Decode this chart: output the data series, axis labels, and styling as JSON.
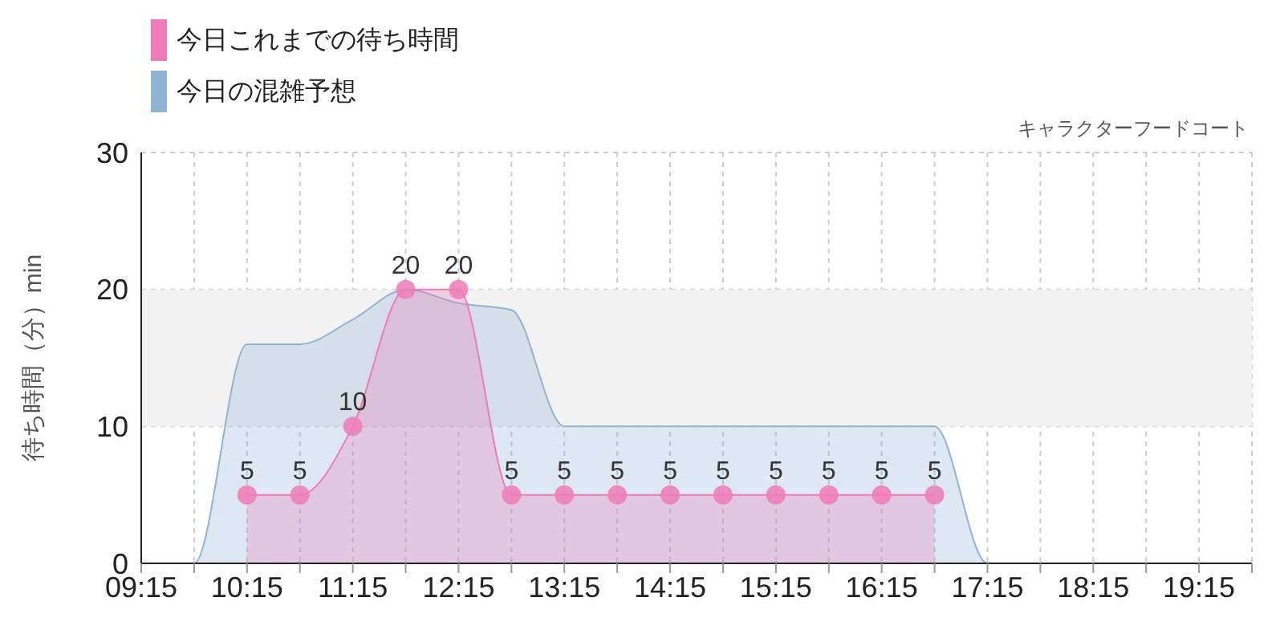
{
  "chart_data": {
    "type": "area",
    "subtitle": "キャラクターフードコート",
    "ylabel": "待ち時間（分）min",
    "xlim": [
      9.25,
      19.75
    ],
    "xticks": [
      {
        "value": 9.25,
        "label": "09:15"
      },
      {
        "value": 9.75,
        "label": null
      },
      {
        "value": 10.25,
        "label": "10:15"
      },
      {
        "value": 10.75,
        "label": null
      },
      {
        "value": 11.25,
        "label": "11:15"
      },
      {
        "value": 11.75,
        "label": null
      },
      {
        "value": 12.25,
        "label": "12:15"
      },
      {
        "value": 12.75,
        "label": null
      },
      {
        "value": 13.25,
        "label": "13:15"
      },
      {
        "value": 13.75,
        "label": null
      },
      {
        "value": 14.25,
        "label": "14:15"
      },
      {
        "value": 14.75,
        "label": null
      },
      {
        "value": 15.25,
        "label": "15:15"
      },
      {
        "value": 15.75,
        "label": null
      },
      {
        "value": 16.25,
        "label": "16:15"
      },
      {
        "value": 16.75,
        "label": null
      },
      {
        "value": 17.25,
        "label": "17:15"
      },
      {
        "value": 17.75,
        "label": null
      },
      {
        "value": 18.25,
        "label": "18:15"
      },
      {
        "value": 18.75,
        "label": null
      },
      {
        "value": 19.25,
        "label": "19:15"
      },
      {
        "value": 19.75,
        "label": null
      }
    ],
    "ylim": [
      0,
      30
    ],
    "yticks": [
      0,
      10,
      20,
      30
    ],
    "grid": true,
    "legend": "top left",
    "bands": [
      {
        "axis": "y",
        "from": 10,
        "to": 20,
        "color": "#f2f2f2"
      }
    ],
    "series": [
      {
        "name": "今日の混雑予想",
        "color": "#8fb3d3",
        "marker": "none",
        "x": [
          9.25,
          9.75,
          10.25,
          10.75,
          11.25,
          11.75,
          12.25,
          12.75,
          13.25,
          13.75,
          14.25,
          14.75,
          15.25,
          15.75,
          16.25,
          16.75,
          17.25,
          17.75,
          18.25,
          18.75,
          19.25,
          19.75
        ],
        "values": [
          0,
          0,
          16,
          16,
          17.8,
          20,
          19,
          18.5,
          10,
          10,
          10,
          10,
          10,
          10,
          10,
          10,
          0,
          0,
          0,
          0,
          0,
          0
        ]
      },
      {
        "name": "今日これまでの待ち時間",
        "color": "#f07ab8",
        "marker": "circle",
        "x": [
          10.25,
          10.75,
          11.25,
          11.75,
          12.25,
          12.75,
          13.25,
          13.75,
          14.25,
          14.75,
          15.25,
          15.75,
          16.25,
          16.75
        ],
        "values": [
          5,
          5,
          10,
          20,
          20,
          5,
          5,
          5,
          5,
          5,
          5,
          5,
          5,
          5
        ],
        "value_labels": [
          "5",
          "5",
          "10",
          "20",
          "20",
          "5",
          "5",
          "5",
          "5",
          "5",
          "5",
          "5",
          "5",
          "5"
        ]
      }
    ]
  }
}
